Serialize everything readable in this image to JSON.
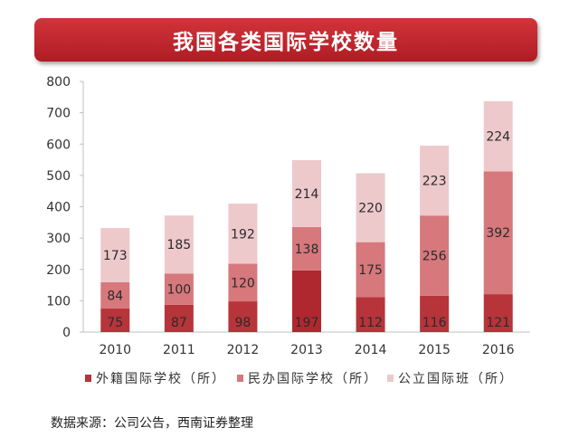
{
  "chart_data": {
    "type": "bar",
    "stacked": true,
    "title": "我国各类国际学校数量",
    "categories": [
      "2010",
      "2011",
      "2012",
      "2013",
      "2014",
      "2015",
      "2016"
    ],
    "series": [
      {
        "name": "外籍国际学校（所）",
        "values": [
          75,
          87,
          98,
          197,
          112,
          116,
          121
        ],
        "color": "#b6343a",
        "color_2013": "#b0282f"
      },
      {
        "name": "民办国际学校（所）",
        "values": [
          84,
          100,
          120,
          138,
          175,
          256,
          392
        ],
        "color": "#d6787c"
      },
      {
        "name": "公立国际班（所）",
        "values": [
          173,
          185,
          192,
          214,
          220,
          223,
          224
        ],
        "color": "#edc9cb"
      }
    ],
    "ylim": [
      0,
      800
    ],
    "yticks": [
      0,
      100,
      200,
      300,
      400,
      500,
      600,
      700,
      800
    ],
    "gridlines": false,
    "legend_position": "bottom"
  },
  "source": "数据来源：公司公告，西南证券整理"
}
